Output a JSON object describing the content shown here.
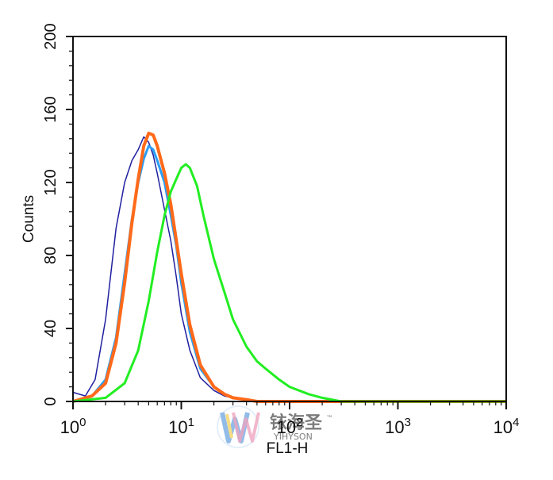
{
  "chart_data": {
    "type": "line",
    "title": "",
    "xlabel": "FL1-H",
    "ylabel": "Counts",
    "x_scale": "log",
    "xlim": [
      1,
      10000
    ],
    "ylim": [
      0,
      200
    ],
    "y_ticks": [
      0,
      40,
      80,
      120,
      160,
      200
    ],
    "x_ticks": [
      {
        "value": 1,
        "base": "10",
        "exp": "0"
      },
      {
        "value": 10,
        "base": "10",
        "exp": "1"
      },
      {
        "value": 100,
        "base": "10",
        "exp": "2"
      },
      {
        "value": 1000,
        "base": "10",
        "exp": "3"
      },
      {
        "value": 10000,
        "base": "10",
        "exp": "4"
      }
    ],
    "grid": false,
    "legend": "none",
    "series": [
      {
        "color": "#1f1fa0",
        "stroke_width": 1.5,
        "x": [
          1.0,
          1.3,
          1.6,
          2.0,
          2.5,
          3.0,
          3.5,
          4.0,
          4.5,
          5.0,
          5.5,
          6.0,
          7.0,
          8.0,
          9.0,
          10.0,
          12.0,
          15.0,
          20.0,
          25.0,
          30.0,
          40.0,
          50.0,
          100.0,
          10000.0
        ],
        "y": [
          5,
          3,
          12,
          45,
          95,
          120,
          132,
          138,
          145,
          142,
          135,
          125,
          105,
          88,
          68,
          48,
          28,
          13,
          6,
          3,
          2,
          1,
          0,
          0,
          0
        ]
      },
      {
        "color": "#2a9df4",
        "stroke_width": 3,
        "x": [
          1.0,
          1.5,
          2.0,
          2.5,
          3.0,
          3.5,
          4.0,
          4.5,
          5.0,
          5.5,
          6.0,
          7.0,
          8.0,
          9.0,
          10.0,
          12.0,
          15.0,
          20.0,
          25.0,
          30.0,
          40.0,
          50.0,
          100.0,
          10000.0
        ],
        "y": [
          0,
          3,
          12,
          35,
          70,
          100,
          120,
          133,
          140,
          138,
          132,
          120,
          102,
          85,
          65,
          38,
          18,
          8,
          4,
          2,
          1,
          0,
          0,
          0
        ]
      },
      {
        "color": "#ff6a1a",
        "stroke_width": 4,
        "x": [
          1.0,
          1.5,
          2.0,
          2.5,
          3.0,
          3.5,
          4.0,
          4.5,
          5.0,
          5.5,
          6.0,
          7.0,
          8.0,
          9.0,
          10.0,
          12.0,
          15.0,
          20.0,
          25.0,
          30.0,
          40.0,
          50.0,
          100.0,
          10000.0
        ],
        "y": [
          0,
          3,
          10,
          32,
          65,
          98,
          122,
          140,
          147,
          146,
          140,
          125,
          108,
          88,
          70,
          42,
          20,
          8,
          4,
          2,
          1,
          0,
          0,
          0
        ]
      },
      {
        "color": "#22ee22",
        "stroke_width": 3,
        "x": [
          1.0,
          2.0,
          3.0,
          4.0,
          5.0,
          6.0,
          7.0,
          8.0,
          9.0,
          10.0,
          11.0,
          12.0,
          14.0,
          16.0,
          20.0,
          25.0,
          30.0,
          40.0,
          50.0,
          60.0,
          80.0,
          100.0,
          150.0,
          200.0,
          300.0,
          10000.0
        ],
        "y": [
          0,
          2,
          10,
          28,
          55,
          82,
          102,
          115,
          122,
          128,
          130,
          128,
          118,
          102,
          78,
          60,
          45,
          30,
          22,
          18,
          12,
          8,
          4,
          2,
          0,
          0
        ]
      }
    ],
    "watermark": {
      "text_cn": "铱海圣",
      "text_en": "YIHYSON",
      "tm": "™"
    }
  }
}
